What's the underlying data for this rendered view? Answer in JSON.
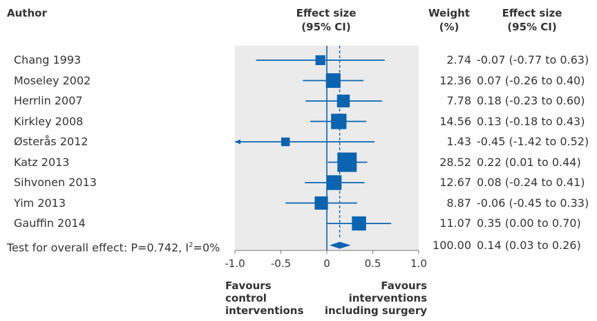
{
  "headers": {
    "author": "Author",
    "effect_plot": [
      "Effect size",
      "(95% CI)"
    ],
    "weight": [
      "Weight",
      "(%)"
    ],
    "effect_text": [
      "Effect size",
      "(95% CI)"
    ]
  },
  "footer": {
    "left": [
      "Favours",
      "control",
      "interventions"
    ],
    "right": [
      "Favours",
      "interventions",
      "including surgery"
    ]
  },
  "colors": {
    "marker": "#0a64b0",
    "axis": "#0a64b0",
    "panel": "#ebebeb",
    "text": "#333333"
  },
  "chart_data": {
    "type": "forest",
    "xlim": [
      -1.0,
      1.0
    ],
    "x_ticks": [
      -1.0,
      -0.5,
      0,
      0.5,
      1.0
    ],
    "x_tick_labels": [
      "-1.0",
      "-0.5",
      "0",
      "0.5",
      "1.0"
    ],
    "studies": [
      {
        "author": "Chang 1993",
        "estimate": -0.07,
        "lower": -0.77,
        "upper": 0.63,
        "weight": "2.74",
        "ci_text": "-0.07 (-0.77 to 0.63)"
      },
      {
        "author": "Moseley 2002",
        "estimate": 0.07,
        "lower": -0.26,
        "upper": 0.4,
        "weight": "12.36",
        "ci_text": "0.07 (-0.26 to 0.40)"
      },
      {
        "author": "Herrlin 2007",
        "estimate": 0.18,
        "lower": -0.23,
        "upper": 0.6,
        "weight": "7.78",
        "ci_text": "0.18 (-0.23 to 0.60)"
      },
      {
        "author": "Kirkley 2008",
        "estimate": 0.13,
        "lower": -0.18,
        "upper": 0.43,
        "weight": "14.56",
        "ci_text": "0.13 (-0.18 to 0.43)"
      },
      {
        "author": "Østerås 2012",
        "estimate": -0.45,
        "lower": -1.42,
        "upper": 0.52,
        "weight": "1.43",
        "ci_text": "-0.45 (-1.42 to 0.52)"
      },
      {
        "author": "Katz 2013",
        "estimate": 0.22,
        "lower": 0.01,
        "upper": 0.44,
        "weight": "28.52",
        "ci_text": "0.22 (0.01 to 0.44)"
      },
      {
        "author": "Sihvonen 2013",
        "estimate": 0.08,
        "lower": -0.24,
        "upper": 0.41,
        "weight": "12.67",
        "ci_text": "0.08 (-0.24 to 0.41)"
      },
      {
        "author": "Yim 2013",
        "estimate": -0.06,
        "lower": -0.45,
        "upper": 0.33,
        "weight": "8.87",
        "ci_text": "-0.06 (-0.45 to 0.33)"
      },
      {
        "author": "Gauffin 2014",
        "estimate": 0.35,
        "lower": 0.0,
        "upper": 0.7,
        "weight": "11.07",
        "ci_text": "0.35 (0.00 to 0.70)"
      }
    ],
    "overall": {
      "label_prefix": "Test for overall effect: P=0.742, I",
      "label_sup": "2",
      "label_suffix": "=0%",
      "estimate": 0.14,
      "lower": 0.03,
      "upper": 0.26,
      "weight": "100.00",
      "ci_text": "0.14 (0.03 to 0.26)"
    }
  }
}
